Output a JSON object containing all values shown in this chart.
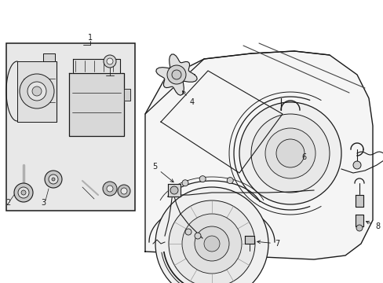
{
  "background_color": "#ffffff",
  "line_color": "#1a1a1a",
  "box_bg": "#e8e8e8",
  "fig_width": 4.89,
  "fig_height": 3.6,
  "dpi": 100,
  "border_lw": 1.0,
  "part_lw": 0.7
}
